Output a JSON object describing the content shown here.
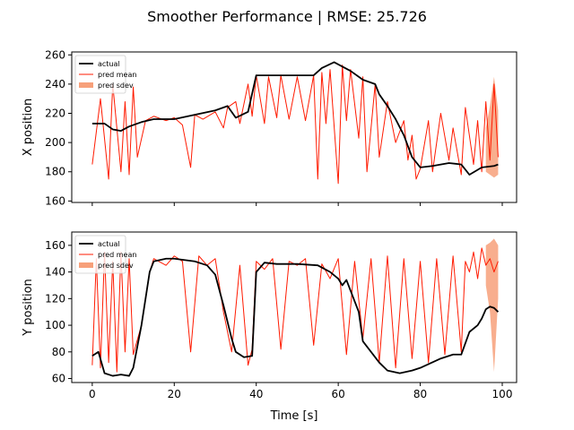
{
  "chart_data": {
    "type": "line",
    "title": "Smoother Performance | RMSE: 25.726",
    "xlabel": "Time [s]",
    "xlim": [
      -5,
      103.5
    ],
    "xticks": [
      0,
      20,
      40,
      60,
      80,
      100
    ],
    "legend_position": "top-left",
    "grid": false,
    "subplots": [
      {
        "ylabel": "X position",
        "ylim": [
          159,
          262
        ],
        "yticks": [
          160,
          180,
          200,
          220,
          240,
          260
        ],
        "legend": [
          "actual",
          "pred mean",
          "pred sdev"
        ],
        "series": [
          {
            "name": "actual",
            "color": "#000000",
            "x": [
              0,
              3,
              5,
              7,
              9,
              12,
              15,
              20,
              25,
              30,
              33,
              35,
              38,
              40,
              45,
              50,
              54,
              56,
              59,
              61,
              63,
              66,
              69,
              70,
              72,
              74,
              76,
              78,
              80,
              83,
              87,
              90,
              92,
              95,
              98,
              99
            ],
            "y": [
              213,
              213,
              209,
              208,
              211,
              214,
              216,
              216,
              219,
              222,
              225,
              217,
              221,
              246,
              246,
              246,
              246,
              251,
              255,
              252,
              249,
              243,
              240,
              233,
              225,
              216,
              205,
              190,
              183,
              184,
              186,
              185,
              178,
              183,
              184,
              185
            ]
          },
          {
            "name": "pred mean",
            "color": "#ff1a00",
            "x": [
              0,
              2,
              4,
              5,
              7,
              8,
              9,
              10,
              11,
              13,
              15,
              18,
              20,
              22,
              24,
              25,
              27,
              30,
              32,
              33,
              35,
              36,
              38,
              39,
              40,
              42,
              43,
              45,
              46,
              48,
              50,
              52,
              54,
              55,
              56,
              57,
              58,
              60,
              61,
              62,
              63,
              65,
              66,
              67,
              69,
              70,
              72,
              74,
              76,
              77,
              78,
              79,
              80,
              82,
              83,
              85,
              87,
              88,
              90,
              91,
              93,
              94,
              95,
              96,
              97,
              98,
              99
            ],
            "y": [
              185,
              230,
              175,
              240,
              180,
              228,
              178,
              238,
              190,
              215,
              218,
              215,
              217,
              212,
              183,
              219,
              216,
              221,
              210,
              224,
              228,
              213,
              240,
              218,
              246,
              213,
              245,
              217,
              246,
              216,
              245,
              215,
              246,
              175,
              248,
              213,
              250,
              172,
              253,
              215,
              250,
              203,
              245,
              180,
              240,
              190,
              228,
              200,
              215,
              188,
              205,
              175,
              182,
              215,
              180,
              220,
              188,
              210,
              178,
              224,
              185,
              215,
              180,
              228,
              188,
              240,
              190
            ]
          },
          {
            "name": "pred sdev",
            "color": "#f7a07a",
            "x": [
              96,
              97,
              98,
              99
            ],
            "lower": [
              180,
              178,
              176,
              178
            ],
            "upper": [
              210,
              225,
              245,
              222
            ]
          }
        ]
      },
      {
        "ylabel": "Y position",
        "ylim": [
          57,
          170
        ],
        "yticks": [
          60,
          80,
          100,
          120,
          140,
          160
        ],
        "legend": [
          "actual",
          "pred mean",
          "pred sdev"
        ],
        "series": [
          {
            "name": "actual",
            "color": "#000000",
            "x": [
              0,
              1.5,
              3,
              5,
              7,
              9,
              10,
              12,
              14,
              15,
              18,
              20,
              25,
              28,
              30,
              32,
              34,
              35,
              37,
              39,
              40,
              42,
              45,
              50,
              55,
              58,
              60,
              61,
              62,
              65,
              66,
              70,
              72,
              75,
              78,
              80,
              85,
              88,
              90,
              92,
              94,
              95,
              96,
              97,
              98,
              99
            ],
            "y": [
              77,
              80,
              64,
              62,
              63,
              62,
              68,
              100,
              140,
              148,
              150,
              150,
              148,
              145,
              138,
              115,
              90,
              80,
              76,
              77,
              140,
              147,
              146,
              146,
              145,
              140,
              135,
              130,
              134,
              110,
              88,
              72,
              66,
              64,
              66,
              68,
              75,
              78,
              78,
              95,
              100,
              105,
              112,
              114,
              113,
              110
            ]
          },
          {
            "name": "pred mean",
            "color": "#ff1a00",
            "x": [
              0,
              1,
              2,
              3,
              4,
              5,
              6,
              7,
              8,
              9,
              10,
              12,
              14,
              15,
              18,
              20,
              22,
              24,
              26,
              28,
              30,
              32,
              34,
              36,
              38,
              39,
              40,
              42,
              44,
              46,
              48,
              50,
              52,
              54,
              56,
              58,
              60,
              62,
              64,
              66,
              68,
              70,
              72,
              74,
              76,
              78,
              80,
              82,
              84,
              86,
              88,
              90,
              91,
              92,
              93,
              94,
              95,
              96,
              97,
              98,
              99
            ],
            "y": [
              70,
              150,
              68,
              155,
              72,
              148,
              65,
              155,
              80,
              150,
              78,
              100,
              140,
              150,
              145,
              152,
              148,
              80,
              152,
              145,
              150,
              110,
              80,
              145,
              70,
              82,
              148,
              142,
              150,
              82,
              148,
              145,
              150,
              85,
              146,
              135,
              150,
              78,
              148,
              90,
              150,
              72,
              152,
              68,
              150,
              75,
              148,
              72,
              150,
              78,
              152,
              80,
              148,
              140,
              155,
              135,
              158,
              145,
              150,
              140,
              148
            ]
          },
          {
            "name": "pred sdev",
            "color": "#f7a07a",
            "x": [
              96,
              97,
              98,
              99
            ],
            "lower": [
              130,
              110,
              65,
              120
            ],
            "upper": [
              160,
              162,
              165,
              160
            ]
          }
        ]
      }
    ]
  }
}
